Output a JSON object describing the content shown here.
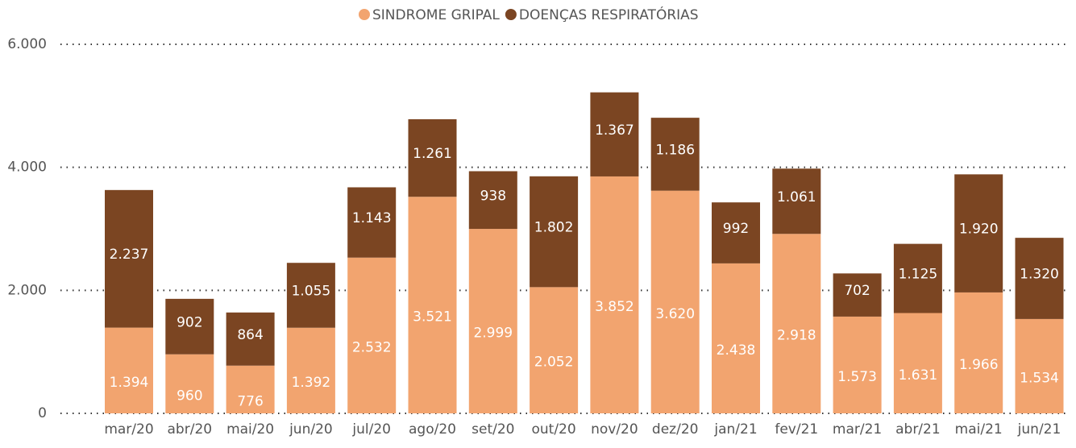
{
  "chart_data": {
    "type": "stacked_bar",
    "categories": [
      "mar/20",
      "abr/20",
      "mai/20",
      "jun/20",
      "jul/20",
      "ago/20",
      "set/20",
      "out/20",
      "nov/20",
      "dez/20",
      "jan/21",
      "fev/21",
      "mar/21",
      "abr/21",
      "mai/21",
      "jun/21"
    ],
    "series": [
      {
        "name": "SINDROME GRIPAL",
        "color": "#F2A46F",
        "values": [
          1394,
          960,
          776,
          1392,
          2532,
          3521,
          2999,
          2052,
          3852,
          3620,
          2438,
          2918,
          1573,
          1631,
          1966,
          1534
        ],
        "value_labels": [
          "1.394",
          "960",
          "776",
          "1.392",
          "2.532",
          "3.521",
          "2.999",
          "2.052",
          "3.852",
          "3.620",
          "2.438",
          "2.918",
          "1.573",
          "1.631",
          "1.966",
          "1.534"
        ]
      },
      {
        "name": "DOENÇAS RESPIRATÓRIAS",
        "color": "#7B4522",
        "values": [
          2237,
          902,
          864,
          1055,
          1143,
          1261,
          938,
          1802,
          1367,
          1186,
          992,
          1061,
          702,
          1125,
          1920,
          1320
        ],
        "value_labels": [
          "2.237",
          "902",
          "864",
          "1.055",
          "1.143",
          "1.261",
          "938",
          "1.802",
          "1.367",
          "1.186",
          "992",
          "1.061",
          "702",
          "1.125",
          "1.920",
          "1.320"
        ]
      }
    ],
    "ylim": [
      0,
      6000
    ],
    "yticks": [
      0,
      {
        "value": 2000,
        "label": "2.000"
      },
      {
        "value": 4000,
        "label": "4.000"
      },
      {
        "value": 6000,
        "label": "6.000"
      }
    ],
    "grid": true,
    "legend": "top"
  }
}
